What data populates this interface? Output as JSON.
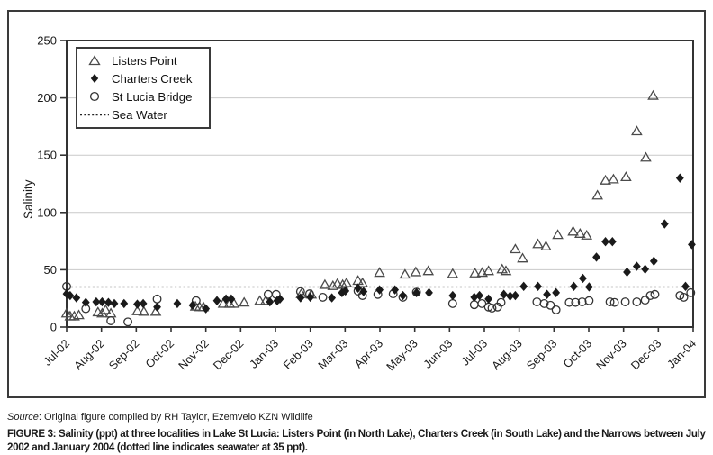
{
  "figure": {
    "source_label": "Source",
    "source_text": ": Original figure compiled by RH Taylor, Ezemvelo KZN Wildlife",
    "caption_label": "FIGURE 3:",
    "caption_text": " Salinity (ppt) at three localities in Lake St Lucia: Listers Point (in North Lake), Charters Creek (in South Lake) and the Narrows between July 2002 and January 2004 (dotted line indicates seawater at 35 ppt)."
  },
  "colors": {
    "marker_stroke": "#4a4a4a",
    "marker_fill": "#1a1a1a",
    "grid": "#c9c9c9",
    "axis": "#333333",
    "text": "#1a1a1a"
  },
  "chart_data": {
    "type": "scatter",
    "title": "",
    "xlabel": "",
    "ylabel": "Salinity",
    "ylim": [
      0,
      250
    ],
    "yticks": [
      0,
      50,
      100,
      150,
      200,
      250
    ],
    "grid": "horizontal gridlines at every 50 ppt",
    "legend_position": "top-left inside plot",
    "x_unit": "months since Jul-02 (0 = Jul-02, 18 = Jan-04)",
    "x_categories": [
      "Jul-02",
      "Aug-02",
      "Sep-02",
      "Oct-02",
      "Nov-02",
      "Dec-02",
      "Jan-03",
      "Feb-03",
      "Mar-03",
      "Apr-03",
      "May-03",
      "Jun-03",
      "Jul-03",
      "Aug-03",
      "Sep-03",
      "Oct-03",
      "Nov-03",
      "Dec-03",
      "Jan-04"
    ],
    "seawater_line": {
      "label": "Sea Water",
      "value_ppt": 35,
      "style": "dotted"
    },
    "series": [
      {
        "name": "Listers Point",
        "marker": "open-triangle",
        "points": [
          [
            0.0,
            12
          ],
          [
            0.1,
            9.5
          ],
          [
            0.22,
            9.5
          ],
          [
            0.35,
            10.5
          ],
          [
            0.9,
            13
          ],
          [
            1.02,
            12
          ],
          [
            1.12,
            15
          ],
          [
            1.27,
            12
          ],
          [
            2.03,
            14
          ],
          [
            2.22,
            13.5
          ],
          [
            2.56,
            13.5
          ],
          [
            3.7,
            18
          ],
          [
            3.82,
            17.5
          ],
          [
            3.93,
            17.5
          ],
          [
            4.5,
            20.5
          ],
          [
            4.68,
            20.5
          ],
          [
            4.81,
            20.5
          ],
          [
            5.1,
            21.5
          ],
          [
            5.55,
            23
          ],
          [
            5.72,
            23
          ],
          [
            6.74,
            29
          ],
          [
            7.03,
            28.5
          ],
          [
            7.42,
            37
          ],
          [
            7.65,
            36
          ],
          [
            7.78,
            38
          ],
          [
            7.93,
            37
          ],
          [
            8.04,
            38.5
          ],
          [
            8.37,
            40.5
          ],
          [
            8.5,
            38.5
          ],
          [
            8.99,
            47.5
          ],
          [
            9.72,
            46
          ],
          [
            10.03,
            48
          ],
          [
            10.39,
            49
          ],
          [
            11.09,
            46.5
          ],
          [
            11.73,
            47
          ],
          [
            11.94,
            47.5
          ],
          [
            12.12,
            49
          ],
          [
            12.51,
            50.5
          ],
          [
            12.62,
            49
          ],
          [
            12.89,
            68
          ],
          [
            13.1,
            60
          ],
          [
            13.54,
            72.5
          ],
          [
            13.77,
            70.5
          ],
          [
            14.11,
            80.5
          ],
          [
            14.55,
            83.5
          ],
          [
            14.75,
            81.5
          ],
          [
            14.94,
            80
          ],
          [
            15.25,
            115
          ],
          [
            15.48,
            128
          ],
          [
            15.71,
            129
          ],
          [
            16.07,
            131
          ],
          [
            16.38,
            171
          ],
          [
            16.64,
            148
          ],
          [
            16.85,
            202
          ]
        ]
      },
      {
        "name": "Charters Creek",
        "marker": "filled-diamond",
        "points": [
          [
            0.0,
            29
          ],
          [
            0.1,
            27.5
          ],
          [
            0.28,
            25.5
          ],
          [
            0.55,
            21.5
          ],
          [
            0.85,
            22
          ],
          [
            1.02,
            22
          ],
          [
            1.2,
            21.5
          ],
          [
            1.37,
            20.5
          ],
          [
            1.65,
            20.5
          ],
          [
            2.03,
            20
          ],
          [
            2.2,
            20.5
          ],
          [
            2.6,
            17.5
          ],
          [
            3.18,
            20.5
          ],
          [
            3.62,
            19
          ],
          [
            4.0,
            16
          ],
          [
            4.32,
            23
          ],
          [
            4.58,
            24.5
          ],
          [
            4.73,
            24.5
          ],
          [
            5.84,
            22
          ],
          [
            6.05,
            23
          ],
          [
            6.13,
            24.5
          ],
          [
            6.72,
            25.5
          ],
          [
            7.0,
            26
          ],
          [
            7.62,
            25.5
          ],
          [
            7.91,
            30
          ],
          [
            8.01,
            31.5
          ],
          [
            8.37,
            34
          ],
          [
            8.53,
            31
          ],
          [
            8.99,
            32.5
          ],
          [
            9.43,
            32.5
          ],
          [
            9.66,
            27.5
          ],
          [
            10.05,
            30
          ],
          [
            10.41,
            30
          ],
          [
            11.09,
            27.5
          ],
          [
            11.71,
            26
          ],
          [
            11.86,
            27.5
          ],
          [
            12.12,
            24.5
          ],
          [
            12.56,
            28.5
          ],
          [
            12.74,
            27
          ],
          [
            12.89,
            27.5
          ],
          [
            13.13,
            35.5
          ],
          [
            13.54,
            35.5
          ],
          [
            13.8,
            28.5
          ],
          [
            14.06,
            30
          ],
          [
            14.57,
            35.5
          ],
          [
            14.83,
            42.5
          ],
          [
            15.01,
            35
          ],
          [
            15.22,
            61
          ],
          [
            15.48,
            74.5
          ],
          [
            15.68,
            74.5
          ],
          [
            16.1,
            48
          ],
          [
            16.38,
            53
          ],
          [
            16.62,
            50.5
          ],
          [
            16.87,
            57.5
          ],
          [
            17.18,
            90
          ],
          [
            17.62,
            130
          ],
          [
            17.78,
            35.5
          ],
          [
            17.96,
            72
          ]
        ]
      },
      {
        "name": "St Lucia Bridge",
        "marker": "open-circle",
        "points": [
          [
            0.0,
            35.5
          ],
          [
            0.55,
            16
          ],
          [
            1.27,
            5.5
          ],
          [
            1.76,
            4.5
          ],
          [
            2.6,
            24.5
          ],
          [
            3.72,
            23
          ],
          [
            5.79,
            28.5
          ],
          [
            6.02,
            28.5
          ],
          [
            6.72,
            31
          ],
          [
            6.98,
            29
          ],
          [
            7.36,
            26
          ],
          [
            8.37,
            31.5
          ],
          [
            8.5,
            27.5
          ],
          [
            8.94,
            28.5
          ],
          [
            9.38,
            29
          ],
          [
            9.66,
            26
          ],
          [
            10.05,
            30.5
          ],
          [
            11.09,
            20.5
          ],
          [
            11.71,
            19.5
          ],
          [
            11.93,
            20.5
          ],
          [
            12.12,
            17.5
          ],
          [
            12.22,
            16.5
          ],
          [
            12.38,
            17.5
          ],
          [
            12.48,
            21.5
          ],
          [
            13.51,
            22
          ],
          [
            13.72,
            20.5
          ],
          [
            13.9,
            19
          ],
          [
            14.06,
            15
          ],
          [
            14.44,
            21.5
          ],
          [
            14.62,
            21.5
          ],
          [
            14.81,
            22
          ],
          [
            15.01,
            23
          ],
          [
            15.61,
            22
          ],
          [
            15.74,
            21.5
          ],
          [
            16.05,
            22
          ],
          [
            16.38,
            22
          ],
          [
            16.62,
            23.5
          ],
          [
            16.77,
            27.5
          ],
          [
            16.9,
            28.5
          ],
          [
            17.62,
            27.5
          ],
          [
            17.73,
            26
          ],
          [
            17.93,
            30
          ]
        ]
      }
    ]
  }
}
